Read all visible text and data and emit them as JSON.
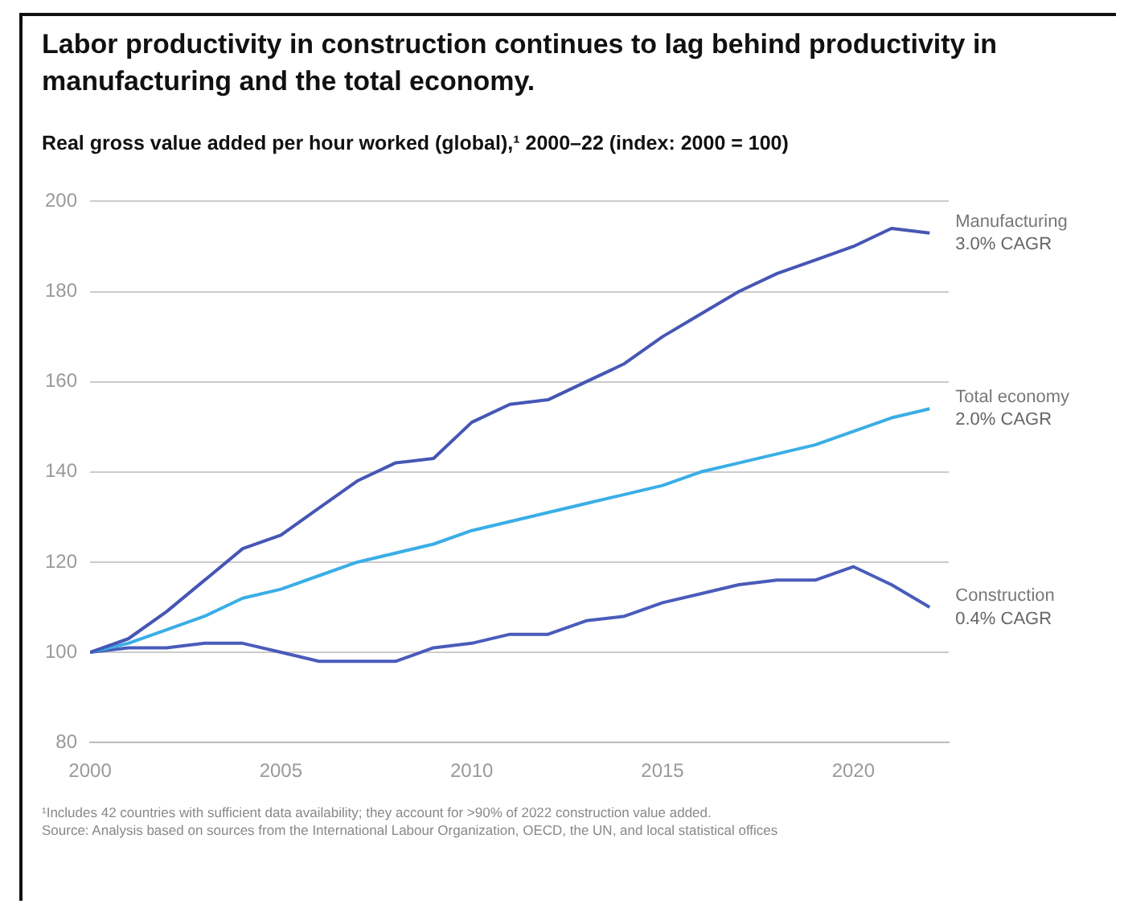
{
  "chart_data": {
    "type": "line",
    "title": "Labor productivity in construction continues to lag behind productivity in manufacturing and the total economy.",
    "subtitle": "Real gross value added per hour worked (global),¹ 2000–22 (index: 2000 = 100)",
    "x": [
      2000,
      2001,
      2002,
      2003,
      2004,
      2005,
      2006,
      2007,
      2008,
      2009,
      2010,
      2011,
      2012,
      2013,
      2014,
      2015,
      2016,
      2017,
      2018,
      2019,
      2020,
      2021,
      2022
    ],
    "series": [
      {
        "name": "Manufacturing",
        "color": "#4656b4",
        "values": [
          100,
          103,
          109,
          116,
          123,
          126,
          132,
          138,
          142,
          143,
          151,
          155,
          156,
          160,
          164,
          170,
          175,
          180,
          184,
          187,
          190,
          194,
          193
        ]
      },
      {
        "name": "Total economy",
        "color": "#3aaee6",
        "values": [
          100,
          102,
          105,
          108,
          112,
          114,
          117,
          120,
          122,
          124,
          127,
          129,
          131,
          133,
          135,
          137,
          140,
          142,
          144,
          146,
          149,
          152,
          154
        ]
      },
      {
        "name": "Construction",
        "color": "#4a5cba",
        "values": [
          100,
          101,
          101,
          102,
          102,
          100,
          98,
          98,
          98,
          101,
          102,
          104,
          104,
          107,
          108,
          111,
          113,
          115,
          116,
          116,
          119,
          115,
          110
        ]
      }
    ],
    "annotations": [
      "3.0% CAGR",
      "2.0% CAGR",
      "0.4% CAGR",
      "¹Includes 42 countries with sufficient data availability; they account for >90% of 2022 construction value added.",
      "Source: Analysis based on sources from the International Labour Organization, OECD, the UN, and local statistical offices"
    ],
    "xlim": [
      2000,
      2022.5
    ],
    "xticks": [
      2000,
      2005,
      2010,
      2015,
      2020
    ],
    "ylim": [
      80,
      200
    ],
    "yticks": [
      80,
      100,
      120,
      140,
      160,
      180,
      200
    ],
    "grid": "y",
    "legend": false,
    "marker": "none",
    "line_style": "solid"
  }
}
